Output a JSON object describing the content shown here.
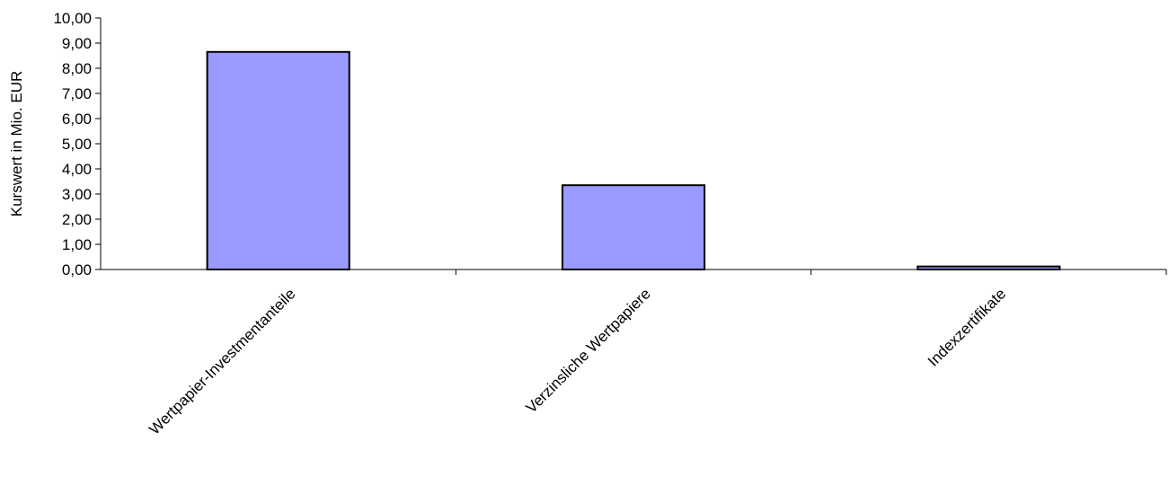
{
  "chart_data": {
    "type": "bar",
    "categories": [
      "Wertpapier-Investmentanteile",
      "Verzinsliche Wertpapiere",
      "Indexzertifikate"
    ],
    "values": [
      8.65,
      3.35,
      0.12
    ],
    "title": "",
    "xlabel": "",
    "ylabel": "Kurswert in Mio. EUR",
    "ylim": [
      0,
      10
    ],
    "yticks": [
      "0,00",
      "1,00",
      "2,00",
      "3,00",
      "4,00",
      "5,00",
      "6,00",
      "7,00",
      "8,00",
      "9,00",
      "10,00"
    ],
    "bar_color": "#9999ff",
    "bar_edge_color": "#000000",
    "grid": false,
    "legend": "none"
  }
}
